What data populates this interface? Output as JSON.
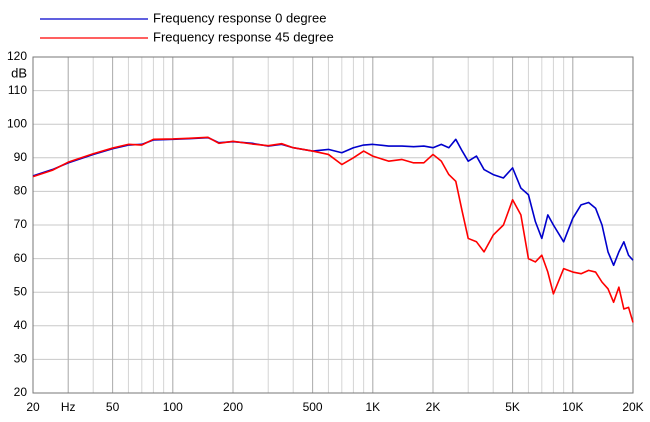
{
  "chart_data": {
    "type": "line",
    "y_label": "dB",
    "log_x": true,
    "grid": true,
    "legend": "top-left",
    "x": [
      20,
      25,
      30,
      40,
      50,
      60,
      70,
      80,
      100,
      120,
      150,
      170,
      200,
      250,
      300,
      350,
      400,
      500,
      600,
      700,
      800,
      900,
      1000,
      1200,
      1400,
      1600,
      1800,
      2000,
      2200,
      2400,
      2600,
      2800,
      3000,
      3300,
      3600,
      4000,
      4500,
      5000,
      5500,
      6000,
      6500,
      7000,
      7500,
      8000,
      9000,
      10000,
      11000,
      12000,
      13000,
      14000,
      15000,
      16000,
      17000,
      18000,
      19000,
      20000
    ],
    "series": [
      {
        "name": "Frequency response 0 degree",
        "color": "#0000cc",
        "values": [
          84.6,
          86.5,
          88.5,
          91,
          92.7,
          93.8,
          94,
          95.3,
          95.5,
          95.7,
          96,
          94.5,
          94.8,
          94.3,
          93.5,
          94,
          93,
          92,
          92.5,
          91.5,
          93,
          93.8,
          94,
          93.5,
          93.5,
          93.3,
          93.5,
          93,
          94,
          93,
          95.5,
          92,
          89,
          90.5,
          86.5,
          85,
          84,
          87,
          81,
          79,
          71,
          66,
          73,
          70,
          65,
          72,
          76,
          76.7,
          75,
          70,
          62,
          58,
          62,
          65,
          61,
          59.5
        ]
      },
      {
        "name": "Frequency response 45 degree",
        "color": "#ff0000",
        "values": [
          84.4,
          86.3,
          88.7,
          91.2,
          92.9,
          94,
          93.8,
          95.5,
          95.6,
          95.8,
          96.1,
          94.3,
          94.9,
          94.1,
          93.6,
          94.2,
          93,
          92,
          91,
          88,
          90,
          92,
          90.5,
          89,
          89.5,
          88.5,
          88.5,
          91,
          89,
          85,
          83,
          74,
          66,
          65,
          62,
          67,
          70,
          77.5,
          73,
          60,
          59,
          61,
          56,
          49.5,
          57,
          56,
          55.5,
          56.5,
          56,
          53,
          51,
          47,
          51.5,
          45,
          45.5,
          41
        ]
      }
    ],
    "xlim": [
      20,
      20000
    ],
    "xticks": [
      20,
      {
        "value": 30,
        "label": "Hz"
      },
      50,
      100,
      200,
      500,
      {
        "value": 1000,
        "label": "1K"
      },
      {
        "value": 2000,
        "label": "2K"
      },
      {
        "value": 5000,
        "label": "5K"
      },
      {
        "value": 10000,
        "label": "10K"
      },
      {
        "value": 20000,
        "label": "20K"
      }
    ],
    "ylim": [
      20,
      120
    ],
    "yticks": [
      20,
      30,
      40,
      50,
      60,
      70,
      80,
      90,
      100,
      110,
      120
    ]
  }
}
